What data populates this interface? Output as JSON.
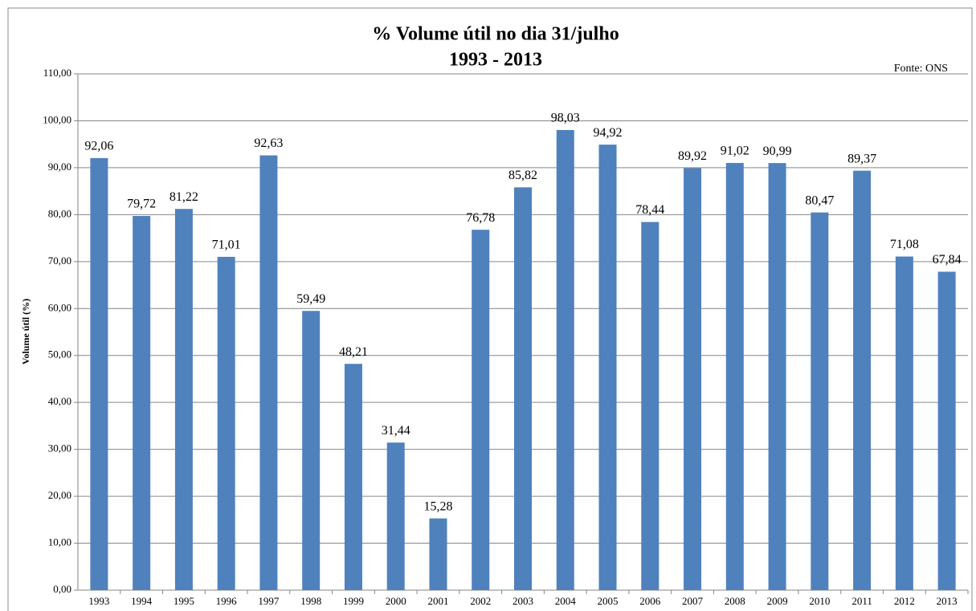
{
  "chart_data": {
    "type": "bar",
    "title": "% Volume útil no dia 31/julho",
    "subtitle": "1993 - 2013",
    "annotation": "Fonte: ONS",
    "y_label": "Volume útil (%)",
    "categories": [
      "1993",
      "1994",
      "1995",
      "1996",
      "1997",
      "1998",
      "1999",
      "2000",
      "2001",
      "2002",
      "2003",
      "2004",
      "2005",
      "2006",
      "2007",
      "2008",
      "2009",
      "2010",
      "2011",
      "2012",
      "2013"
    ],
    "values": [
      92.06,
      79.72,
      81.22,
      71.01,
      92.63,
      59.49,
      48.21,
      31.44,
      15.28,
      76.78,
      85.82,
      98.03,
      94.92,
      78.44,
      89.92,
      91.02,
      90.99,
      80.47,
      89.37,
      71.08,
      67.84
    ],
    "value_labels": [
      "92,06",
      "79,72",
      "81,22",
      "71,01",
      "92,63",
      "59,49",
      "48,21",
      "31,44",
      "15,28",
      "76,78",
      "85,82",
      "98,03",
      "94,92",
      "78,44",
      "89,92",
      "91,02",
      "90,99",
      "80,47",
      "89,37",
      "71,08",
      "67,84"
    ],
    "color": "#4f81bd",
    "ylim": [
      0,
      110
    ],
    "yticks": [
      {
        "value": 0,
        "label": "0,00"
      },
      {
        "value": 10,
        "label": "10,00"
      },
      {
        "value": 20,
        "label": "20,00"
      },
      {
        "value": 30,
        "label": "30,00"
      },
      {
        "value": 40,
        "label": "40,00"
      },
      {
        "value": 50,
        "label": "50,00"
      },
      {
        "value": 60,
        "label": "60,00"
      },
      {
        "value": 70,
        "label": "70,00"
      },
      {
        "value": 80,
        "label": "80,00"
      },
      {
        "value": 90,
        "label": "90,00"
      },
      {
        "value": 100,
        "label": "100,00"
      },
      {
        "value": 110,
        "label": "110,00"
      }
    ],
    "grid": true
  }
}
